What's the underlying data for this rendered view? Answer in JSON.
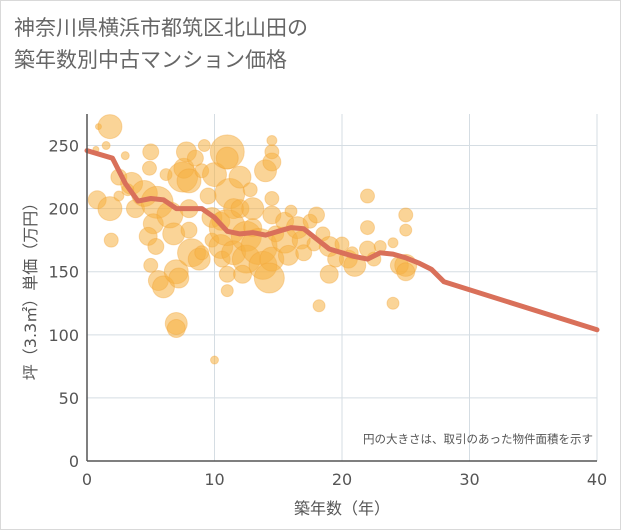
{
  "title_lines": [
    "神奈川県横浜市都筑区北山田の",
    "築年数別中古マンション価格"
  ],
  "chart_data": {
    "type": "scatter",
    "xlabel": "築年数（年）",
    "ylabel": "坪（3.3㎡）単価（万円）",
    "xlim": [
      0,
      40
    ],
    "ylim": [
      0,
      275
    ],
    "xticks": [
      0,
      10,
      20,
      30,
      40
    ],
    "yticks": [
      0,
      50,
      100,
      150,
      200,
      250
    ],
    "grid": true,
    "note": "円の大きさは、取引のあった物件面積を示す",
    "colors": {
      "bubble": "#f5b041",
      "trend": "#d9705a",
      "grid": "#d5dde3"
    },
    "bubbles": [
      {
        "x": 0.9,
        "y": 265,
        "s": 3
      },
      {
        "x": 0.7,
        "y": 247,
        "s": 3
      },
      {
        "x": 1.8,
        "y": 265,
        "s": 12
      },
      {
        "x": 1.5,
        "y": 250,
        "s": 4
      },
      {
        "x": 0.8,
        "y": 207,
        "s": 9
      },
      {
        "x": 1.8,
        "y": 200,
        "s": 12
      },
      {
        "x": 1.9,
        "y": 175,
        "s": 7
      },
      {
        "x": 2.5,
        "y": 225,
        "s": 8
      },
      {
        "x": 3.0,
        "y": 242,
        "s": 4
      },
      {
        "x": 3.5,
        "y": 220,
        "s": 11
      },
      {
        "x": 3.8,
        "y": 200,
        "s": 9
      },
      {
        "x": 4.5,
        "y": 212,
        "s": 13
      },
      {
        "x": 4.9,
        "y": 232,
        "s": 7
      },
      {
        "x": 5.0,
        "y": 245,
        "s": 8
      },
      {
        "x": 5.5,
        "y": 205,
        "s": 16
      },
      {
        "x": 5.2,
        "y": 188,
        "s": 10
      },
      {
        "x": 4.8,
        "y": 178,
        "s": 9
      },
      {
        "x": 5.4,
        "y": 170,
        "s": 8
      },
      {
        "x": 5.0,
        "y": 155,
        "s": 7
      },
      {
        "x": 5.6,
        "y": 143,
        "s": 10
      },
      {
        "x": 6.0,
        "y": 138,
        "s": 11
      },
      {
        "x": 6.2,
        "y": 227,
        "s": 6
      },
      {
        "x": 6.5,
        "y": 195,
        "s": 13
      },
      {
        "x": 6.8,
        "y": 180,
        "s": 11
      },
      {
        "x": 7.0,
        "y": 150,
        "s": 12
      },
      {
        "x": 7.2,
        "y": 145,
        "s": 10
      },
      {
        "x": 7.0,
        "y": 109,
        "s": 11
      },
      {
        "x": 7.0,
        "y": 105,
        "s": 9
      },
      {
        "x": 7.5,
        "y": 225,
        "s": 15
      },
      {
        "x": 7.6,
        "y": 232,
        "s": 10
      },
      {
        "x": 7.8,
        "y": 245,
        "s": 10
      },
      {
        "x": 8.0,
        "y": 200,
        "s": 9
      },
      {
        "x": 8.0,
        "y": 183,
        "s": 8
      },
      {
        "x": 8.2,
        "y": 165,
        "s": 14
      },
      {
        "x": 8.8,
        "y": 160,
        "s": 11
      },
      {
        "x": 8.5,
        "y": 240,
        "s": 8
      },
      {
        "x": 8.0,
        "y": 222,
        "s": 12
      },
      {
        "x": 9.0,
        "y": 230,
        "s": 7
      },
      {
        "x": 9.5,
        "y": 210,
        "s": 8
      },
      {
        "x": 9.8,
        "y": 193,
        "s": 10
      },
      {
        "x": 9.8,
        "y": 175,
        "s": 7
      },
      {
        "x": 10.0,
        "y": 227,
        "s": 12
      },
      {
        "x": 10.0,
        "y": 80,
        "s": 4
      },
      {
        "x": 10.5,
        "y": 190,
        "s": 9
      },
      {
        "x": 10.5,
        "y": 170,
        "s": 12
      },
      {
        "x": 10.6,
        "y": 160,
        "s": 8
      },
      {
        "x": 11.0,
        "y": 245,
        "s": 17
      },
      {
        "x": 11.0,
        "y": 240,
        "s": 11
      },
      {
        "x": 11.2,
        "y": 212,
        "s": 15
      },
      {
        "x": 11.5,
        "y": 200,
        "s": 10
      },
      {
        "x": 11.0,
        "y": 185,
        "s": 18
      },
      {
        "x": 11.5,
        "y": 165,
        "s": 12
      },
      {
        "x": 11.0,
        "y": 148,
        "s": 8
      },
      {
        "x": 11.0,
        "y": 135,
        "s": 6
      },
      {
        "x": 12.0,
        "y": 225,
        "s": 11
      },
      {
        "x": 12.0,
        "y": 200,
        "s": 9
      },
      {
        "x": 12.5,
        "y": 178,
        "s": 15
      },
      {
        "x": 12.5,
        "y": 160,
        "s": 14
      },
      {
        "x": 12.2,
        "y": 148,
        "s": 9
      },
      {
        "x": 13.0,
        "y": 200,
        "s": 11
      },
      {
        "x": 13.0,
        "y": 185,
        "s": 9
      },
      {
        "x": 13.5,
        "y": 170,
        "s": 18
      },
      {
        "x": 13.8,
        "y": 155,
        "s": 14
      },
      {
        "x": 14.0,
        "y": 230,
        "s": 11
      },
      {
        "x": 14.5,
        "y": 237,
        "s": 9
      },
      {
        "x": 14.5,
        "y": 245,
        "s": 7
      },
      {
        "x": 14.5,
        "y": 254,
        "s": 5
      },
      {
        "x": 14.5,
        "y": 208,
        "s": 7
      },
      {
        "x": 14.5,
        "y": 195,
        "s": 9
      },
      {
        "x": 14.8,
        "y": 180,
        "s": 8
      },
      {
        "x": 14.5,
        "y": 160,
        "s": 12
      },
      {
        "x": 14.3,
        "y": 145,
        "s": 15
      },
      {
        "x": 15.5,
        "y": 190,
        "s": 9
      },
      {
        "x": 15.5,
        "y": 175,
        "s": 13
      },
      {
        "x": 15.8,
        "y": 163,
        "s": 10
      },
      {
        "x": 16.5,
        "y": 185,
        "s": 11
      },
      {
        "x": 16.8,
        "y": 175,
        "s": 9
      },
      {
        "x": 17.0,
        "y": 165,
        "s": 8
      },
      {
        "x": 17.5,
        "y": 190,
        "s": 7
      },
      {
        "x": 18.0,
        "y": 195,
        "s": 8
      },
      {
        "x": 18.5,
        "y": 180,
        "s": 7
      },
      {
        "x": 18.2,
        "y": 123,
        "s": 6
      },
      {
        "x": 19.0,
        "y": 170,
        "s": 10
      },
      {
        "x": 19.0,
        "y": 148,
        "s": 9
      },
      {
        "x": 19.5,
        "y": 160,
        "s": 8
      },
      {
        "x": 20.0,
        "y": 172,
        "s": 7
      },
      {
        "x": 20.5,
        "y": 160,
        "s": 9
      },
      {
        "x": 21.0,
        "y": 155,
        "s": 11
      },
      {
        "x": 22.0,
        "y": 210,
        "s": 7
      },
      {
        "x": 22.0,
        "y": 185,
        "s": 7
      },
      {
        "x": 22.0,
        "y": 168,
        "s": 8
      },
      {
        "x": 22.5,
        "y": 160,
        "s": 7
      },
      {
        "x": 23.0,
        "y": 170,
        "s": 6
      },
      {
        "x": 24.0,
        "y": 173,
        "s": 5
      },
      {
        "x": 24.0,
        "y": 125,
        "s": 6
      },
      {
        "x": 24.5,
        "y": 155,
        "s": 9
      },
      {
        "x": 25.0,
        "y": 195,
        "s": 7
      },
      {
        "x": 25.0,
        "y": 183,
        "s": 6
      },
      {
        "x": 25.0,
        "y": 155,
        "s": 11
      },
      {
        "x": 25.0,
        "y": 150,
        "s": 9
      },
      {
        "x": 2.5,
        "y": 210,
        "s": 5
      },
      {
        "x": 3.2,
        "y": 215,
        "s": 6
      },
      {
        "x": 9.2,
        "y": 250,
        "s": 6
      },
      {
        "x": 12.8,
        "y": 215,
        "s": 7
      },
      {
        "x": 16.0,
        "y": 198,
        "s": 6
      },
      {
        "x": 17.8,
        "y": 172,
        "s": 7
      },
      {
        "x": 20.8,
        "y": 165,
        "s": 6
      },
      {
        "x": 9.0,
        "y": 165,
        "s": 7
      }
    ],
    "series": [
      {
        "x": [
          0,
          2,
          3,
          4,
          5,
          6,
          7,
          8,
          9,
          10,
          11,
          12,
          13,
          14,
          15,
          16,
          17,
          18,
          19,
          20,
          21,
          22,
          23,
          24,
          25,
          26,
          27,
          28,
          40
        ],
        "y": [
          246,
          240,
          220,
          206,
          208,
          207,
          200,
          200,
          200,
          193,
          182,
          180,
          181,
          179,
          182,
          185,
          184,
          176,
          168,
          165,
          162,
          160,
          165,
          164,
          161,
          157,
          152,
          142,
          104
        ]
      }
    ]
  }
}
